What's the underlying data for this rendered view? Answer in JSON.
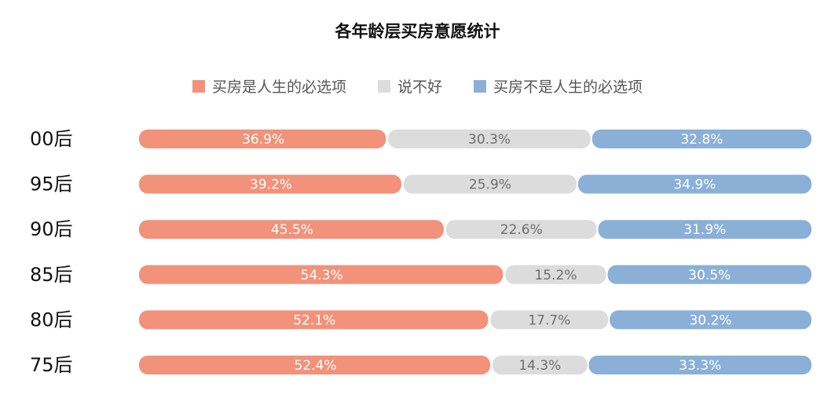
{
  "chart_data": {
    "type": "bar",
    "stacked": true,
    "orientation": "horizontal",
    "title": "各年龄层买房意愿统计",
    "categories": [
      "00后",
      "95后",
      "90后",
      "85后",
      "80后",
      "75后"
    ],
    "series": [
      {
        "name": "买房是人生的必选项",
        "color": "#F2927A",
        "text_color": "#FFFFFF",
        "values": [
          36.9,
          39.2,
          45.5,
          54.3,
          52.1,
          52.4
        ],
        "labels": [
          "36.9%",
          "39.2%",
          "45.5%",
          "54.3%",
          "52.1%",
          "52.4%"
        ]
      },
      {
        "name": "说不好",
        "color": "#DCDCDC",
        "text_color": "#6E6E6E",
        "values": [
          30.3,
          25.9,
          22.6,
          15.2,
          17.7,
          14.3
        ],
        "labels": [
          "30.3%",
          "25.9%",
          "22.6%",
          "15.2%",
          "17.7%",
          "14.3%"
        ]
      },
      {
        "name": "买房不是人生的必选项",
        "color": "#8AB0D8",
        "text_color": "#FFFFFF",
        "values": [
          32.8,
          34.9,
          31.9,
          30.5,
          30.2,
          33.3
        ],
        "labels": [
          "32.8%",
          "34.9%",
          "31.9%",
          "30.5%",
          "30.2%",
          "33.3%"
        ]
      }
    ],
    "legend_position": "top-center",
    "grid": false,
    "xlim": [
      0,
      100
    ]
  }
}
